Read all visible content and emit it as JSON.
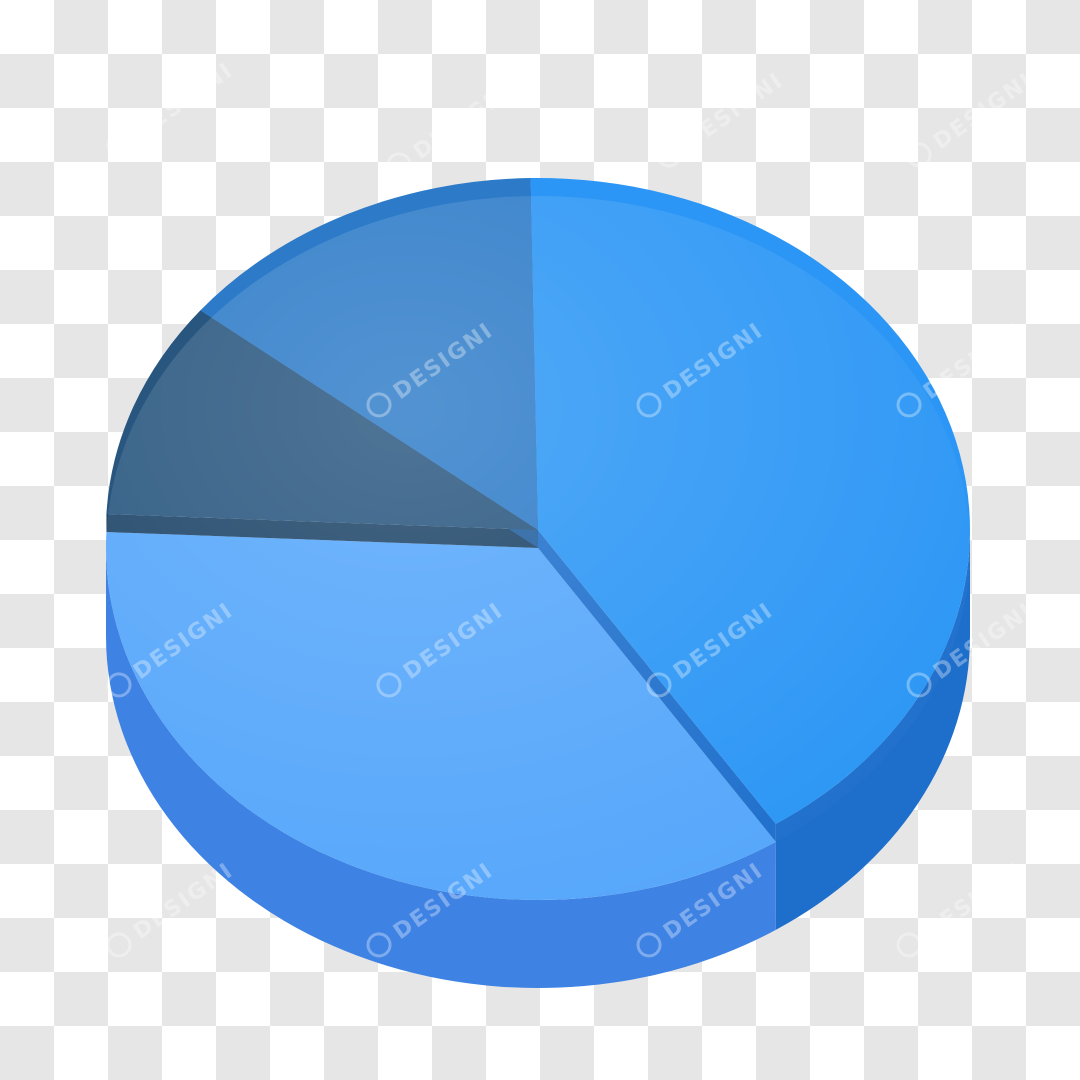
{
  "chart_data": {
    "type": "pie",
    "style": "3d-exploded",
    "title": "",
    "legend": "none",
    "slices": [
      {
        "value": 41,
        "color": "#2b96f5",
        "side_color": "#1e6fcc",
        "raised": true
      },
      {
        "value": 35,
        "color": "#55a6fb",
        "side_color": "#3e82e4",
        "raised": false
      },
      {
        "value": 10,
        "color": "#28567f",
        "side_color": "#1d4468",
        "raised": true
      },
      {
        "value": 14,
        "color": "#2d7bc8",
        "side_color": "#215f9f",
        "raised": true
      }
    ]
  },
  "watermark": {
    "text": "DESIGNI",
    "logo_icon": "designi-logo-icon"
  }
}
